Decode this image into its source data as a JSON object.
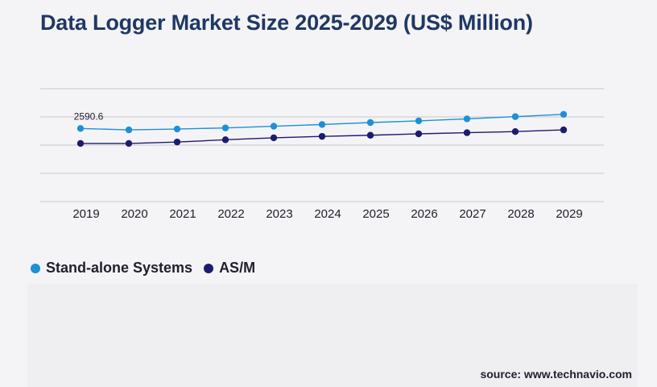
{
  "title": "Data Logger Market Size 2025-2029 (US$ Million)",
  "source": "source: www.technavio.com",
  "colors": {
    "series_standalone": "#1f8fd6",
    "series_asm": "#1e1b6e",
    "title": "#1f3864",
    "grid": "#c8c8cc"
  },
  "chart_data": {
    "type": "line",
    "title": "Data Logger Market Size 2025-2029 (US$ Million)",
    "x": [
      "2019",
      "2020",
      "2021",
      "2022",
      "2023",
      "2024",
      "2025",
      "2026",
      "2027",
      "2028",
      "2029"
    ],
    "series": [
      {
        "name": "Stand-alone Systems",
        "color": "#1f8fd6",
        "values": [
          2590.6,
          2540,
          2570,
          2610,
          2670,
          2730,
          2800,
          2860,
          2930,
          3010,
          3090
        ]
      },
      {
        "name": "AS/M",
        "color": "#1e1b6e",
        "values": [
          2060,
          2060,
          2110,
          2190,
          2260,
          2310,
          2350,
          2400,
          2440,
          2480,
          2540
        ]
      }
    ],
    "data_labels": [
      {
        "series": 0,
        "index": 0,
        "text": "2590.6"
      }
    ],
    "ylim": [
      0,
      4000
    ],
    "grid": true,
    "legend_position": "bottom-left"
  }
}
